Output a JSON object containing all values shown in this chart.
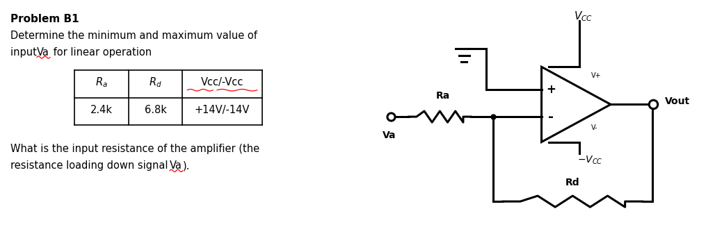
{
  "title": "Problem B1",
  "line1": "Determine the minimum and maximum value of",
  "line2_pre": "input ",
  "line2_va": "Va",
  "line2_post": " for linear operation",
  "table_headers": [
    "Ra",
    "Rd",
    "Vcc/-Vcc"
  ],
  "table_row": [
    "2.4k",
    "6.8k",
    "+14V/-14V"
  ],
  "question_line1": "What is the input resistance of the amplifier (the",
  "question_line2_pre": "resistance loading down signal ",
  "question_line2_va": "Va",
  "question_line2_post": ").",
  "bg_color": "#ffffff",
  "text_color": "#000000"
}
